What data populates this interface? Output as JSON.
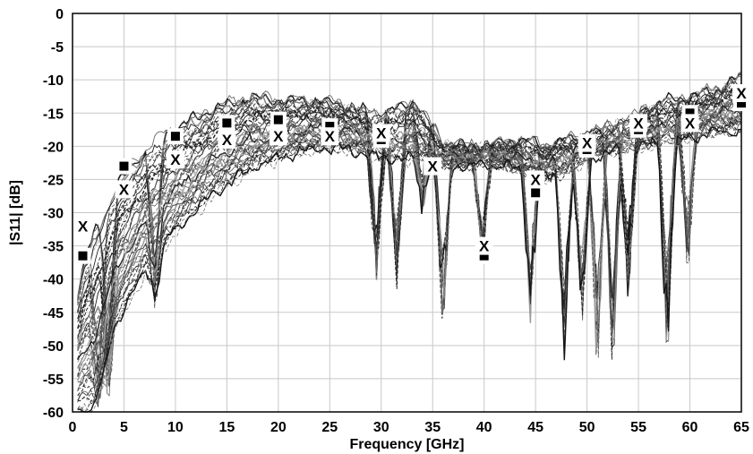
{
  "chart_data": {
    "type": "line",
    "title": "",
    "xlabel": "Frequency [GHz]",
    "ylabel": "|S11| [dB]",
    "xlim": [
      0,
      65
    ],
    "ylim": [
      -60,
      0
    ],
    "x_ticks": [
      "0",
      "5",
      "10",
      "15",
      "20",
      "25",
      "30",
      "35",
      "40",
      "45",
      "50",
      "55",
      "60",
      "65"
    ],
    "y_ticks": [
      "0",
      "-5",
      "-10",
      "-15",
      "-20",
      "-25",
      "-30",
      "-35",
      "-40",
      "-45",
      "-50",
      "-55",
      "-60"
    ],
    "grid": true,
    "legend": "none",
    "envelope_upper": {
      "x": [
        0.5,
        1,
        2,
        3,
        4,
        5,
        6,
        7,
        8,
        10,
        12,
        14,
        16,
        17,
        18,
        20,
        22,
        24,
        26,
        28,
        30,
        32,
        33,
        34,
        36,
        38,
        40,
        42,
        44,
        46,
        48,
        50,
        52,
        54,
        56,
        58,
        60,
        62,
        63,
        64,
        65
      ],
      "y": [
        -42,
        -38,
        -33,
        -29,
        -26,
        -24,
        -22,
        -20.5,
        -19,
        -17,
        -15.5,
        -14,
        -13,
        -12.5,
        -12.5,
        -13,
        -13,
        -13,
        -13.5,
        -14.5,
        -15,
        -14,
        -13,
        -14.5,
        -19.5,
        -20,
        -20,
        -19.5,
        -19,
        -20,
        -19,
        -18,
        -17,
        -16,
        -14,
        -13,
        -12.5,
        -11.5,
        -11,
        -10,
        -9.5
      ]
    },
    "envelope_lower": {
      "x": [
        1,
        2,
        3,
        4,
        6,
        8,
        10,
        12,
        14,
        16,
        18,
        20,
        22,
        24,
        26,
        28,
        30,
        32,
        34,
        36,
        38,
        40,
        42,
        44,
        46,
        48,
        50,
        52,
        54,
        56,
        58,
        60,
        62,
        64,
        65
      ],
      "y": [
        -60,
        -60,
        -55,
        -48,
        -42,
        -37,
        -33,
        -30,
        -27,
        -25,
        -23,
        -22,
        -21,
        -20.5,
        -20.5,
        -21,
        -22,
        -22,
        -22,
        -23,
        -23,
        -23,
        -23,
        -24,
        -25,
        -24,
        -22,
        -21,
        -20.5,
        -20,
        -19.5,
        -19,
        -18,
        -18,
        -18
      ]
    },
    "dips": [
      {
        "x": 29.5,
        "y": -42
      },
      {
        "x": 31.5,
        "y": -42
      },
      {
        "x": 34,
        "y": -31
      },
      {
        "x": 36,
        "y": -49
      },
      {
        "x": 39.8,
        "y": -39
      },
      {
        "x": 44.5,
        "y": -47
      },
      {
        "x": 47.8,
        "y": -53
      },
      {
        "x": 49.5,
        "y": -48
      },
      {
        "x": 51,
        "y": -57
      },
      {
        "x": 52.5,
        "y": -56
      },
      {
        "x": 54,
        "y": -44
      },
      {
        "x": 57.8,
        "y": -55
      },
      {
        "x": 59.8,
        "y": -41
      },
      {
        "x": 2.5,
        "y": -60
      },
      {
        "x": 3.5,
        "y": -60
      },
      {
        "x": 8,
        "y": -45
      }
    ],
    "series": [
      {
        "marker": "square",
        "x": [
          1,
          5,
          10,
          15,
          20,
          25,
          30,
          35,
          40,
          45,
          50,
          55,
          60,
          65
        ],
        "y": [
          -36.5,
          -23,
          -18.5,
          -16.5,
          -16,
          -17,
          -19,
          -23,
          -36.5,
          -27,
          -20.5,
          -17.5,
          -15,
          -13.5
        ]
      },
      {
        "marker": "x",
        "x": [
          1,
          5,
          10,
          15,
          20,
          25,
          30,
          35,
          40,
          45,
          50,
          55,
          60,
          65
        ],
        "y": [
          -32,
          -26.5,
          -22,
          -19,
          -18.5,
          -18.5,
          -18,
          -23,
          -35,
          -25,
          -19.5,
          -16.5,
          -16.5,
          -12
        ]
      }
    ]
  }
}
